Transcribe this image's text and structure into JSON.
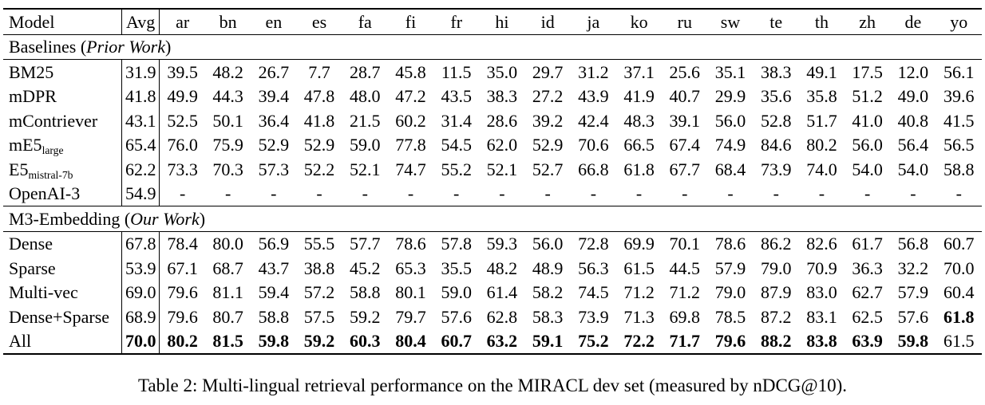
{
  "table": {
    "columns": [
      "Model",
      "Avg",
      "ar",
      "bn",
      "en",
      "es",
      "fa",
      "fi",
      "fr",
      "hi",
      "id",
      "ja",
      "ko",
      "ru",
      "sw",
      "te",
      "th",
      "zh",
      "de",
      "yo"
    ],
    "sections": [
      {
        "header": {
          "prefix": "Baselines (",
          "italic": "Prior Work",
          "suffix": ")"
        },
        "rows": [
          {
            "model": "BM25",
            "sub": "",
            "values": [
              "31.9",
              "39.5",
              "48.2",
              "26.7",
              "7.7",
              "28.7",
              "45.8",
              "11.5",
              "35.0",
              "29.7",
              "31.2",
              "37.1",
              "25.6",
              "35.1",
              "38.3",
              "49.1",
              "17.5",
              "12.0",
              "56.1"
            ],
            "bold": []
          },
          {
            "model": "mDPR",
            "sub": "",
            "values": [
              "41.8",
              "49.9",
              "44.3",
              "39.4",
              "47.8",
              "48.0",
              "47.2",
              "43.5",
              "38.3",
              "27.2",
              "43.9",
              "41.9",
              "40.7",
              "29.9",
              "35.6",
              "35.8",
              "51.2",
              "49.0",
              "39.6"
            ],
            "bold": []
          },
          {
            "model": "mContriever",
            "sub": "",
            "values": [
              "43.1",
              "52.5",
              "50.1",
              "36.4",
              "41.8",
              "21.5",
              "60.2",
              "31.4",
              "28.6",
              "39.2",
              "42.4",
              "48.3",
              "39.1",
              "56.0",
              "52.8",
              "51.7",
              "41.0",
              "40.8",
              "41.5"
            ],
            "bold": []
          },
          {
            "model": "mE5",
            "sub": "large",
            "values": [
              "65.4",
              "76.0",
              "75.9",
              "52.9",
              "52.9",
              "59.0",
              "77.8",
              "54.5",
              "62.0",
              "52.9",
              "70.6",
              "66.5",
              "67.4",
              "74.9",
              "84.6",
              "80.2",
              "56.0",
              "56.4",
              "56.5"
            ],
            "bold": []
          },
          {
            "model": "E5",
            "sub": "mistral-7b",
            "values": [
              "62.2",
              "73.3",
              "70.3",
              "57.3",
              "52.2",
              "52.1",
              "74.7",
              "55.2",
              "52.1",
              "52.7",
              "66.8",
              "61.8",
              "67.7",
              "68.4",
              "73.9",
              "74.0",
              "54.0",
              "54.0",
              "58.8"
            ],
            "bold": []
          },
          {
            "model": "OpenAI-3",
            "sub": "",
            "values": [
              "54.9",
              "-",
              "-",
              "-",
              "-",
              "-",
              "-",
              "-",
              "-",
              "-",
              "-",
              "-",
              "-",
              "-",
              "-",
              "-",
              "-",
              "-",
              "-"
            ],
            "bold": []
          }
        ]
      },
      {
        "header": {
          "prefix": "M3-Embedding (",
          "italic": "Our Work",
          "suffix": ")"
        },
        "rows": [
          {
            "model": "Dense",
            "sub": "",
            "values": [
              "67.8",
              "78.4",
              "80.0",
              "56.9",
              "55.5",
              "57.7",
              "78.6",
              "57.8",
              "59.3",
              "56.0",
              "72.8",
              "69.9",
              "70.1",
              "78.6",
              "86.2",
              "82.6",
              "61.7",
              "56.8",
              "60.7"
            ],
            "bold": []
          },
          {
            "model": "Sparse",
            "sub": "",
            "values": [
              "53.9",
              "67.1",
              "68.7",
              "43.7",
              "38.8",
              "45.2",
              "65.3",
              "35.5",
              "48.2",
              "48.9",
              "56.3",
              "61.5",
              "44.5",
              "57.9",
              "79.0",
              "70.9",
              "36.3",
              "32.2",
              "70.0"
            ],
            "bold": []
          },
          {
            "model": "Multi-vec",
            "sub": "",
            "values": [
              "69.0",
              "79.6",
              "81.1",
              "59.4",
              "57.2",
              "58.8",
              "80.1",
              "59.0",
              "61.4",
              "58.2",
              "74.5",
              "71.2",
              "71.2",
              "79.0",
              "87.9",
              "83.0",
              "62.7",
              "57.9",
              "60.4"
            ],
            "bold": []
          },
          {
            "model": "Dense+Sparse",
            "sub": "",
            "values": [
              "68.9",
              "79.6",
              "80.7",
              "58.8",
              "57.5",
              "59.2",
              "79.7",
              "57.6",
              "62.8",
              "58.3",
              "73.9",
              "71.3",
              "69.8",
              "78.5",
              "87.2",
              "83.1",
              "62.5",
              "57.6",
              "61.8"
            ],
            "bold": [
              18
            ]
          },
          {
            "model": "All",
            "sub": "",
            "values": [
              "70.0",
              "80.2",
              "81.5",
              "59.8",
              "59.2",
              "60.3",
              "80.4",
              "60.7",
              "63.2",
              "59.1",
              "75.2",
              "72.2",
              "71.7",
              "79.6",
              "88.2",
              "83.8",
              "63.9",
              "59.8",
              "61.5"
            ],
            "bold": [
              0,
              1,
              2,
              3,
              4,
              5,
              6,
              7,
              8,
              9,
              10,
              11,
              12,
              13,
              14,
              15,
              16,
              17
            ]
          }
        ]
      }
    ]
  },
  "caption": "Table 2: Multi-lingual retrieval performance on the MIRACL dev set (measured by nDCG@10)."
}
